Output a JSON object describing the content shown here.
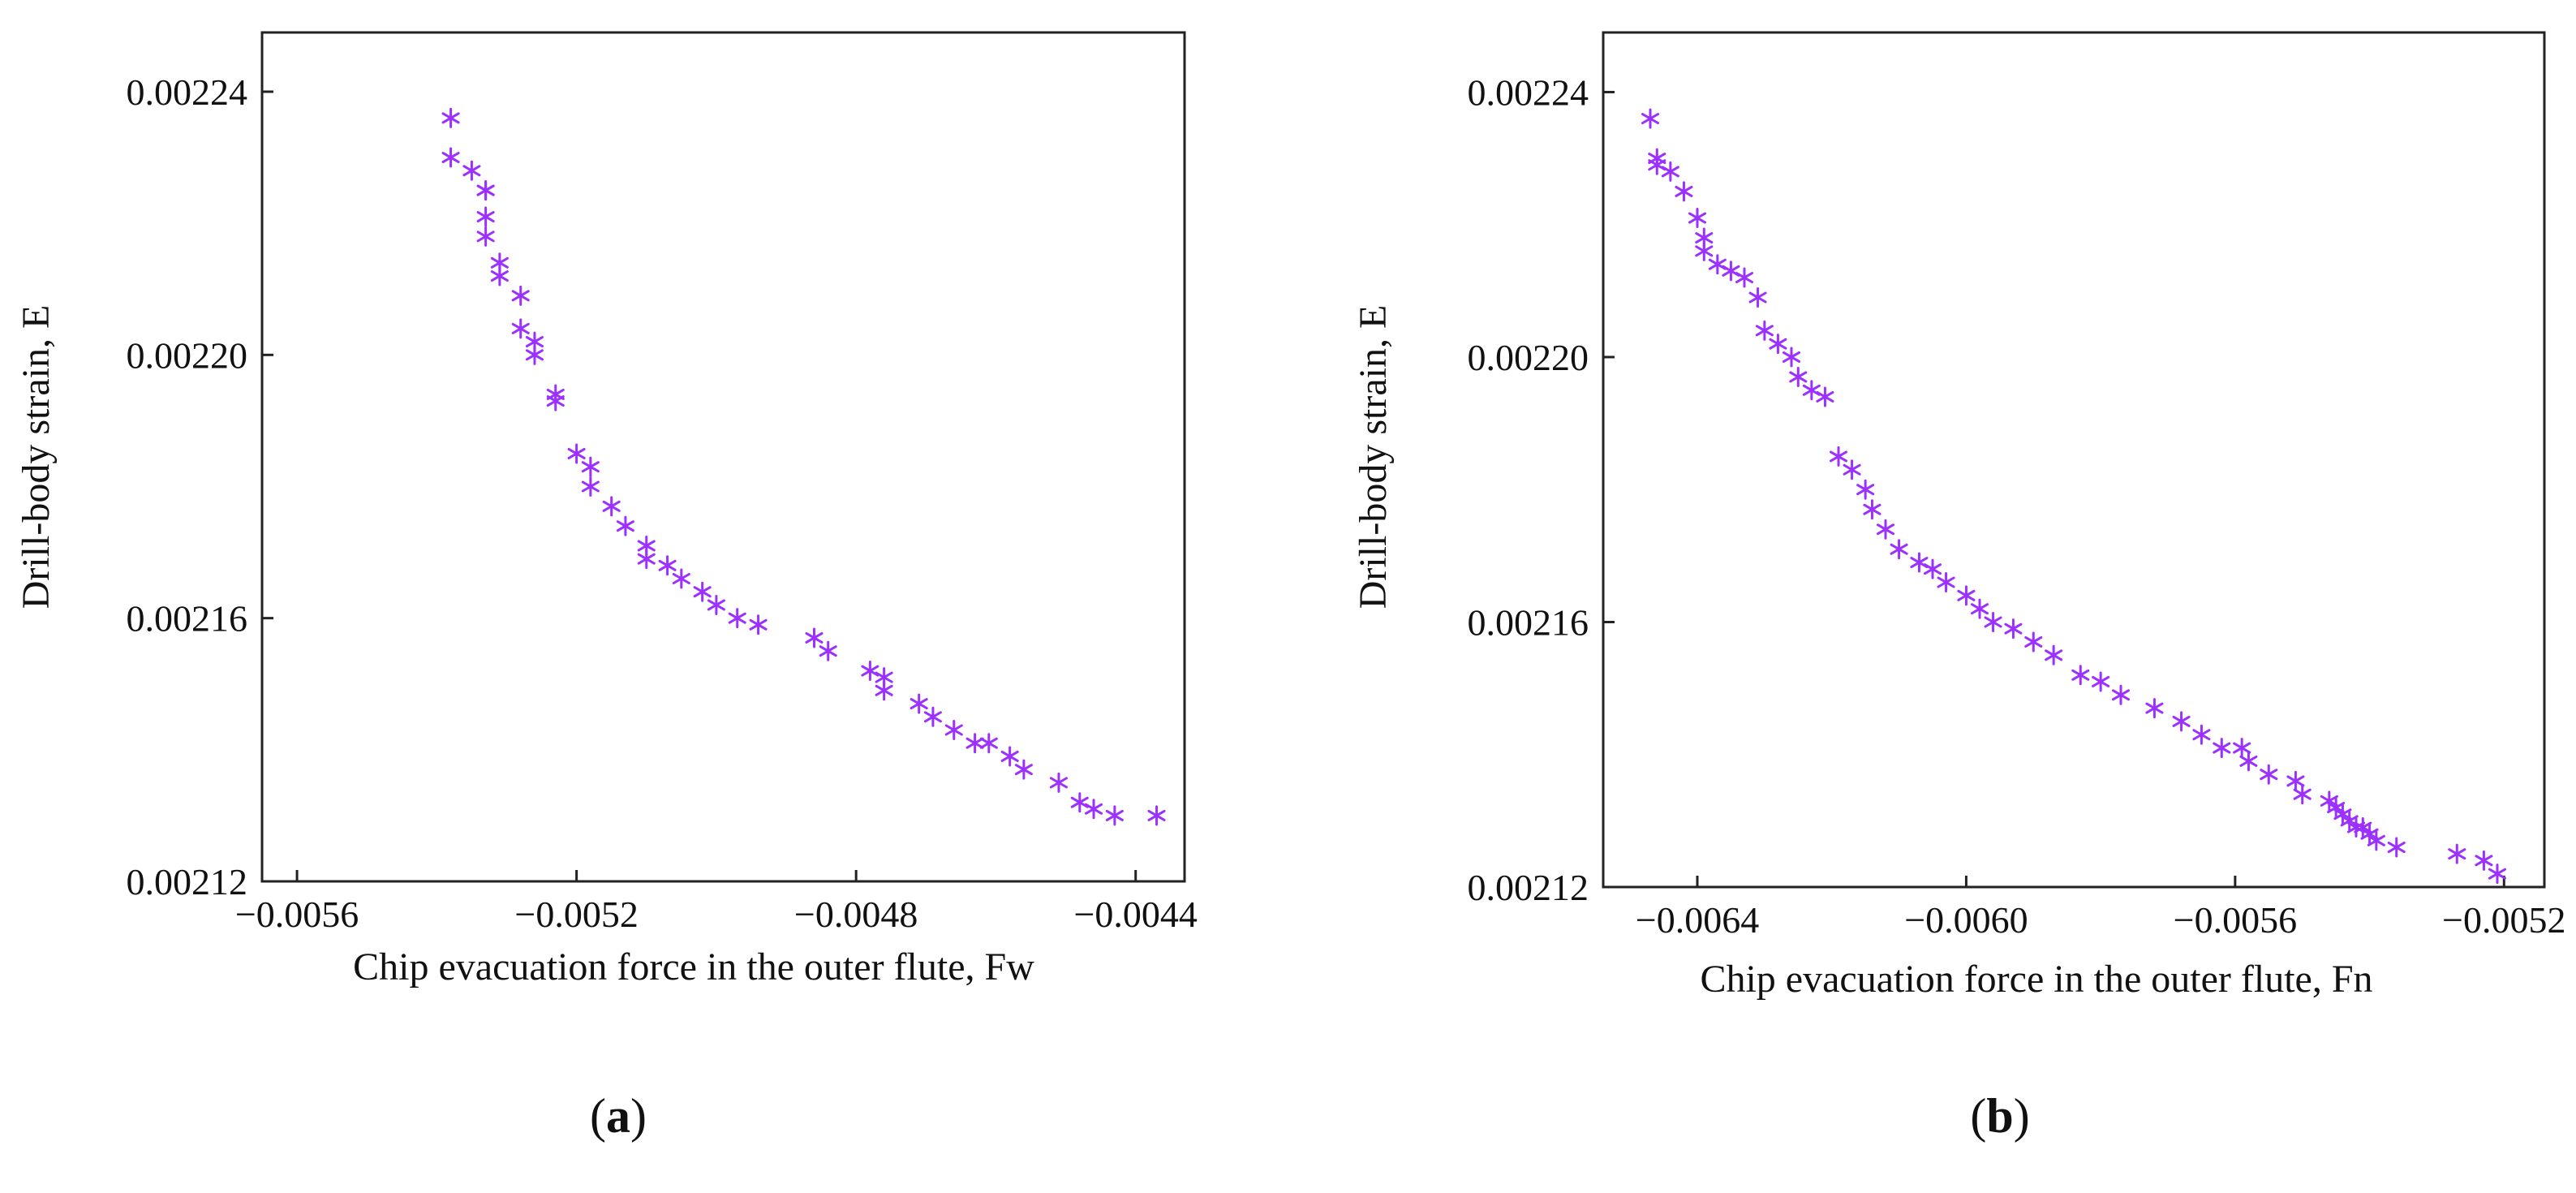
{
  "figure": {
    "panels": [
      {
        "letter": "a",
        "open": "(",
        "close": ")"
      },
      {
        "letter": "b",
        "open": "(",
        "close": ")"
      }
    ]
  },
  "colors": {
    "marker": "#9b30ff",
    "axis": "#222222"
  },
  "chart_data": [
    {
      "type": "scatter",
      "marker": "asterisk",
      "title": "",
      "xlabel": "Chip evacuation force in the outer flute, Fw",
      "ylabel": "Drill-body strain, E",
      "xlim": [
        -0.00565,
        -0.00433
      ],
      "ylim": [
        0.00212,
        0.002249
      ],
      "xticks": [
        -0.0056,
        -0.0052,
        -0.0048,
        -0.0044
      ],
      "xtick_labels": [
        "−0.0056",
        "−0.0052",
        "−0.0048",
        "−0.0044"
      ],
      "yticks": [
        0.00212,
        0.00216,
        0.0022,
        0.00224
      ],
      "ytick_labels": [
        "0.00212",
        "0.00216",
        "0.00220",
        "0.00224"
      ],
      "x": [
        -0.00538,
        -0.00538,
        -0.00535,
        -0.00533,
        -0.00533,
        -0.00533,
        -0.00533,
        -0.00531,
        -0.00531,
        -0.00528,
        -0.00528,
        -0.00526,
        -0.00526,
        -0.00523,
        -0.00523,
        -0.0052,
        -0.00518,
        -0.00518,
        -0.00515,
        -0.00513,
        -0.0051,
        -0.0051,
        -0.00507,
        -0.00505,
        -0.00502,
        -0.005,
        -0.00497,
        -0.00494,
        -0.00486,
        -0.00484,
        -0.00478,
        -0.00476,
        -0.00476,
        -0.00471,
        -0.00469,
        -0.00466,
        -0.00463,
        -0.00461,
        -0.00458,
        -0.00456,
        -0.00451,
        -0.00448,
        -0.00446,
        -0.00443,
        -0.00437
      ],
      "y": [
        0.002236,
        0.00223,
        0.002228,
        0.002225,
        0.002221,
        0.002218,
        0.002225,
        0.002214,
        0.002212,
        0.002209,
        0.002204,
        0.002202,
        0.0022,
        0.002194,
        0.002193,
        0.002185,
        0.002183,
        0.00218,
        0.002177,
        0.002174,
        0.002171,
        0.002169,
        0.002168,
        0.002166,
        0.002164,
        0.002162,
        0.00216,
        0.002159,
        0.002157,
        0.002155,
        0.002152,
        0.002149,
        0.002151,
        0.002147,
        0.002145,
        0.002143,
        0.002141,
        0.002141,
        0.002139,
        0.002137,
        0.002135,
        0.002132,
        0.002131,
        0.00213,
        0.00213
      ]
    },
    {
      "type": "scatter",
      "marker": "asterisk",
      "title": "",
      "xlabel": "Chip evacuation force in the outer flute, Fn",
      "ylabel": "Drill-body strain, E",
      "xlim": [
        -0.00654,
        -0.00514
      ],
      "ylim": [
        0.00212,
        0.002249
      ],
      "xticks": [
        -0.0064,
        -0.006,
        -0.0056,
        -0.0052
      ],
      "xtick_labels": [
        "−0.0064",
        "−0.0060",
        "−0.0056",
        "−0.0052"
      ],
      "yticks": [
        0.00212,
        0.00216,
        0.0022,
        0.00224
      ],
      "ytick_labels": [
        "0.00212",
        "0.00216",
        "0.00220",
        "0.00224"
      ],
      "x": [
        -0.00647,
        -0.00646,
        -0.00646,
        -0.00644,
        -0.00642,
        -0.0064,
        -0.00639,
        -0.00639,
        -0.00637,
        -0.00635,
        -0.00633,
        -0.00631,
        -0.0063,
        -0.00628,
        -0.00626,
        -0.00625,
        -0.00623,
        -0.00621,
        -0.00619,
        -0.00617,
        -0.00615,
        -0.00614,
        -0.00612,
        -0.0061,
        -0.00607,
        -0.00605,
        -0.00603,
        -0.006,
        -0.00598,
        -0.00596,
        -0.00593,
        -0.0059,
        -0.00587,
        -0.00583,
        -0.0058,
        -0.00577,
        -0.00572,
        -0.00568,
        -0.00565,
        -0.00562,
        -0.00559,
        -0.00558,
        -0.00555,
        -0.00551,
        -0.0055,
        -0.00546,
        -0.00545,
        -0.00544,
        -0.00543,
        -0.00542,
        -0.00541,
        -0.0054,
        -0.00539,
        -0.00536,
        -0.00527,
        -0.00523,
        -0.00521
      ],
      "y": [
        0.002236,
        0.00223,
        0.002229,
        0.002228,
        0.002225,
        0.002221,
        0.002218,
        0.002216,
        0.002214,
        0.002213,
        0.002212,
        0.002209,
        0.002204,
        0.002202,
        0.0022,
        0.002197,
        0.002195,
        0.002194,
        0.002185,
        0.002183,
        0.00218,
        0.002177,
        0.002174,
        0.002171,
        0.002169,
        0.002168,
        0.002166,
        0.002164,
        0.002162,
        0.00216,
        0.002159,
        0.002157,
        0.002155,
        0.002152,
        0.002151,
        0.002149,
        0.002147,
        0.002145,
        0.002143,
        0.002141,
        0.002141,
        0.002139,
        0.002137,
        0.002136,
        0.002134,
        0.002133,
        0.002132,
        0.002131,
        0.00213,
        0.002129,
        0.002129,
        0.002128,
        0.002127,
        0.002126,
        0.002125,
        0.002124,
        0.002122
      ]
    }
  ]
}
